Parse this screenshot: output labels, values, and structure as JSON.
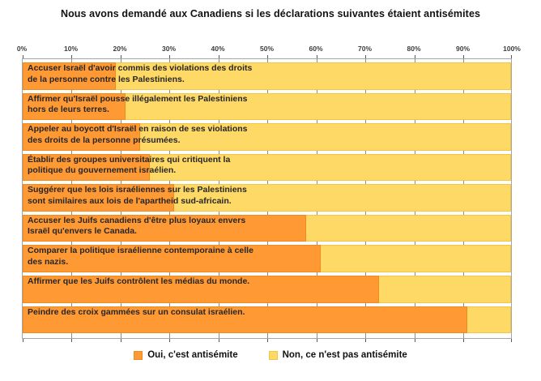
{
  "title": "Nous avons demandé aux Canadiens si les déclarations suivantes étaient antisémites",
  "colors": {
    "oui": "#FF9933",
    "non": "#FFD966",
    "oui_border": "#ef8a1c",
    "non_border": "#f2c641",
    "gridline": "#8c8c8c"
  },
  "legend": {
    "oui_label": "Oui, c'est antisémite",
    "non_label": "Non, ce n'est pas antisémite"
  },
  "x_axis": {
    "ticks": [
      "0%",
      "10%",
      "20%",
      "30%",
      "40%",
      "50%",
      "60%",
      "70%",
      "80%",
      "90%",
      "100%"
    ]
  },
  "chart_data": {
    "type": "bar",
    "orientation": "horizontal",
    "stacked": true,
    "title": "Nous avons demandé aux Canadiens si les déclarations suivantes étaient antisémites",
    "xlim": [
      0,
      100
    ],
    "tick_step": 10,
    "grid": true,
    "legend_position": "bottom",
    "categories": [
      "Accuser Israël d'avoir commis des violations des droits de la personne contre les Palestiniens.",
      "Affirmer qu'Israël pousse illégalement les Palestiniens hors de leurs terres.",
      "Appeler au boycott d'Israël en raison de ses violations des droits de la personne présumées.",
      "Établir des groupes universitaires qui critiquent la politique du gouvernement israélien.",
      "Suggérer que les lois israéliennes sur les Palestiniens sont similaires aux lois de l'apartheid sud-africain.",
      "Accuser les Juifs canadiens d'être plus loyaux envers Israël qu'envers le Canada.",
      "Comparer la politique israélienne contemporaine à celle des nazis.",
      "Affirmer que les Juifs contrôlent les médias du monde.",
      "Peindre des croix gammées sur un consulat israélien."
    ],
    "category_lines": [
      [
        "Accuser Israël d'avoir commis des violations des droits",
        "de la personne contre les Palestiniens."
      ],
      [
        "Affirmer qu'Israël pousse illégalement les Palestiniens",
        "hors de leurs terres."
      ],
      [
        "Appeler au boycott d'Israël en raison de ses violations",
        "des droits de la personne présumées."
      ],
      [
        "Établir des groupes universitaires qui critiquent la",
        "politique du gouvernement israélien."
      ],
      [
        "Suggérer que les lois israéliennes sur les Palestiniens",
        "sont similaires aux lois de l'apartheid sud-africain."
      ],
      [
        "Accuser les Juifs canadiens d'être plus loyaux envers",
        "Israël qu'envers le Canada."
      ],
      [
        "Comparer la politique israélienne contemporaine à celle",
        "des nazis."
      ],
      [
        "Affirmer que les Juifs contrôlent les médias du monde."
      ],
      [
        "Peindre des croix gammées sur un consulat israélien."
      ]
    ],
    "series": [
      {
        "name": "Oui, c'est antisémite",
        "color": "#FF9933",
        "values": [
          19,
          21,
          24,
          26,
          31,
          58,
          61,
          73,
          91
        ]
      },
      {
        "name": "Non, ce n'est pas antisémite",
        "color": "#FFD966",
        "values": [
          81,
          79,
          76,
          74,
          69,
          42,
          39,
          27,
          9
        ]
      }
    ]
  }
}
